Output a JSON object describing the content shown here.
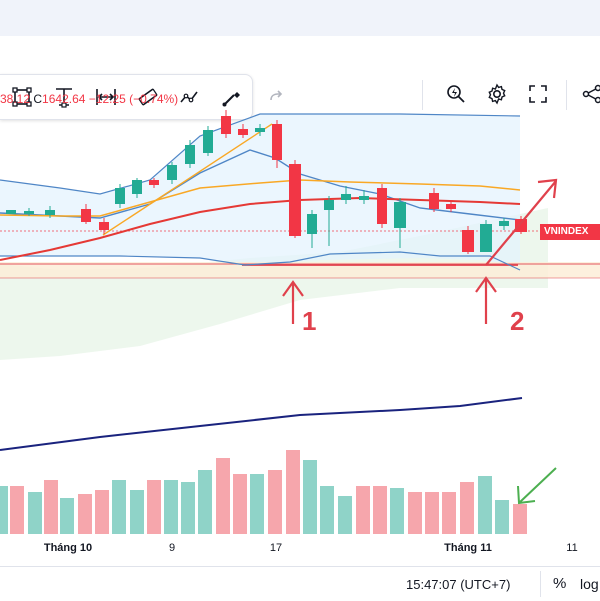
{
  "legend": {
    "value_partial": "38.12",
    "close_label": "C",
    "close_value": "1642.64",
    "change": "−12.25 (−0.74%)"
  },
  "symbol_badge": "VNINDEX",
  "annotations": {
    "marker_1": "1",
    "marker_2": "2"
  },
  "time_axis": {
    "labels": [
      "Tháng 10",
      "9",
      "17",
      "Tháng 11",
      "11"
    ]
  },
  "status_bar": {
    "clock": "15:47:07 (UTC+7)",
    "percent_label": "%",
    "log_label": "log"
  },
  "toolbar": {
    "icons": [
      "rectangle-icon",
      "anchored-text-icon",
      "date-range-icon",
      "parallel-channel-icon",
      "path-icon",
      "brush-icon",
      "redo-icon",
      "quick-search-icon",
      "settings-icon",
      "fullscreen-icon",
      "share-icon"
    ]
  },
  "colors": {
    "up": "#22ab94",
    "down": "#f23645",
    "volume_up": "#8fd3c8",
    "volume_down": "#f6a6ac",
    "annotation": "#e0414c",
    "arrow_green": "#4caf50",
    "ma_long": "#1a237e",
    "ma_mid": "#e53935",
    "ma_short": "#f9a825",
    "bollinger": "#4f86c6"
  }
}
